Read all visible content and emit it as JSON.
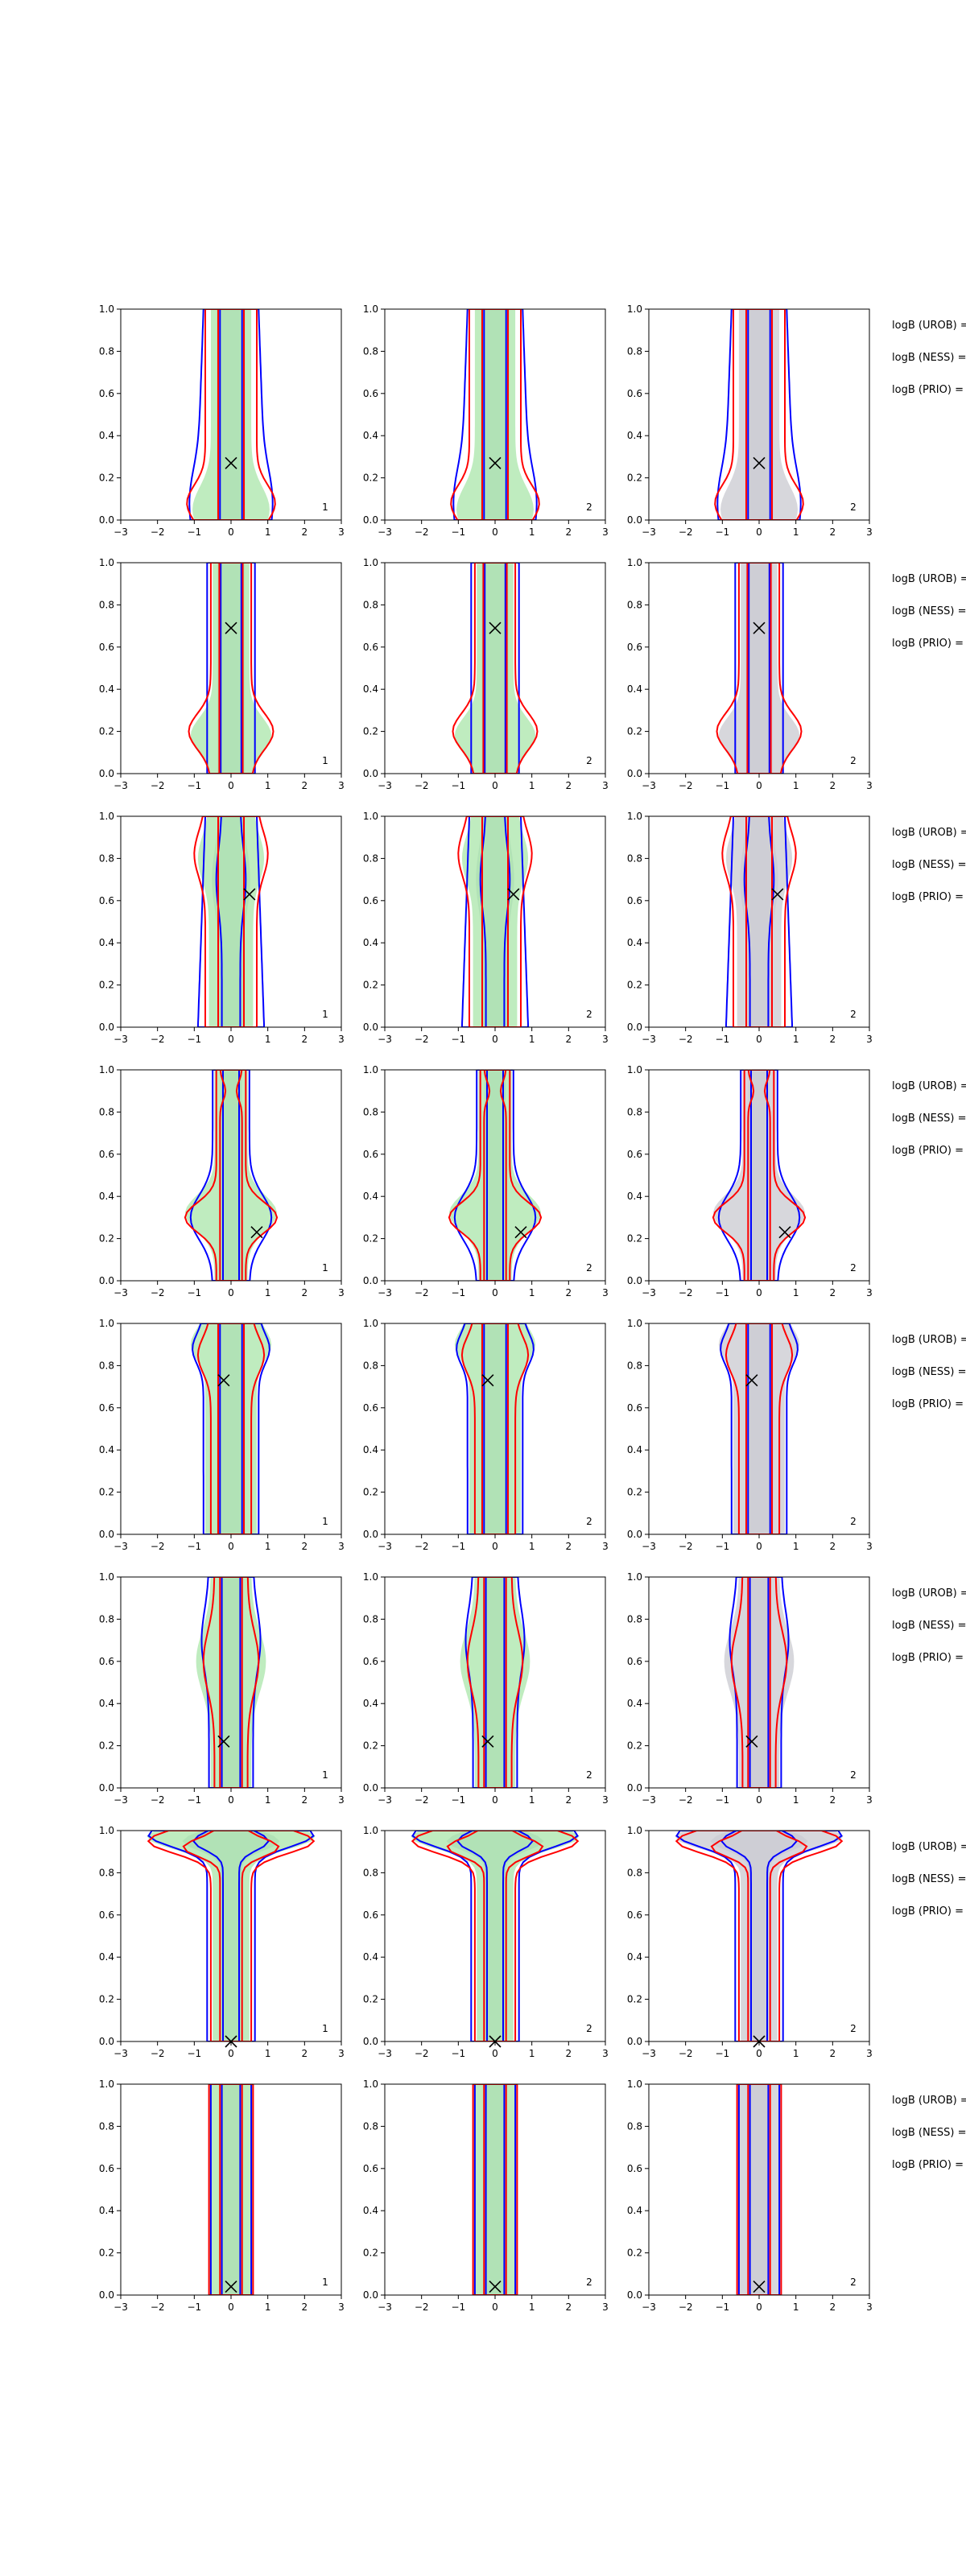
{
  "chart_data": {
    "type": "grid of contour plots",
    "rows": 8,
    "cols": 3,
    "xlim": [
      -3,
      3
    ],
    "ylim": [
      0,
      1
    ],
    "xticks": [
      "−3",
      "−2",
      "−1",
      "0",
      "1",
      "2",
      "3"
    ],
    "yticks": [
      "0.0",
      "0.2",
      "0.4",
      "0.6",
      "0.8",
      "1.0"
    ],
    "grid": false,
    "panel_labels": [
      "1",
      "2",
      "2"
    ],
    "side_labels": [
      "logB (UROB) =",
      "logB (NESS) =",
      "logB (PRIO) ="
    ],
    "colors": {
      "blue_contour": "#0000ff",
      "red_contour": "#ff0000",
      "green_fill": "#bfecbf",
      "grey_fill": "#d7d7dc",
      "marker": "#000000"
    },
    "markers": [
      {
        "x": 0.0,
        "y": 0.27
      },
      {
        "x": 0.0,
        "y": 0.69
      },
      {
        "x": 0.5,
        "y": 0.63
      },
      {
        "x": 0.7,
        "y": 0.23
      },
      {
        "x": -0.2,
        "y": 0.73
      },
      {
        "x": -0.2,
        "y": 0.22
      },
      {
        "x": 0.0,
        "y": 0.0
      },
      {
        "x": 0.0,
        "y": 0.04
      }
    ]
  }
}
